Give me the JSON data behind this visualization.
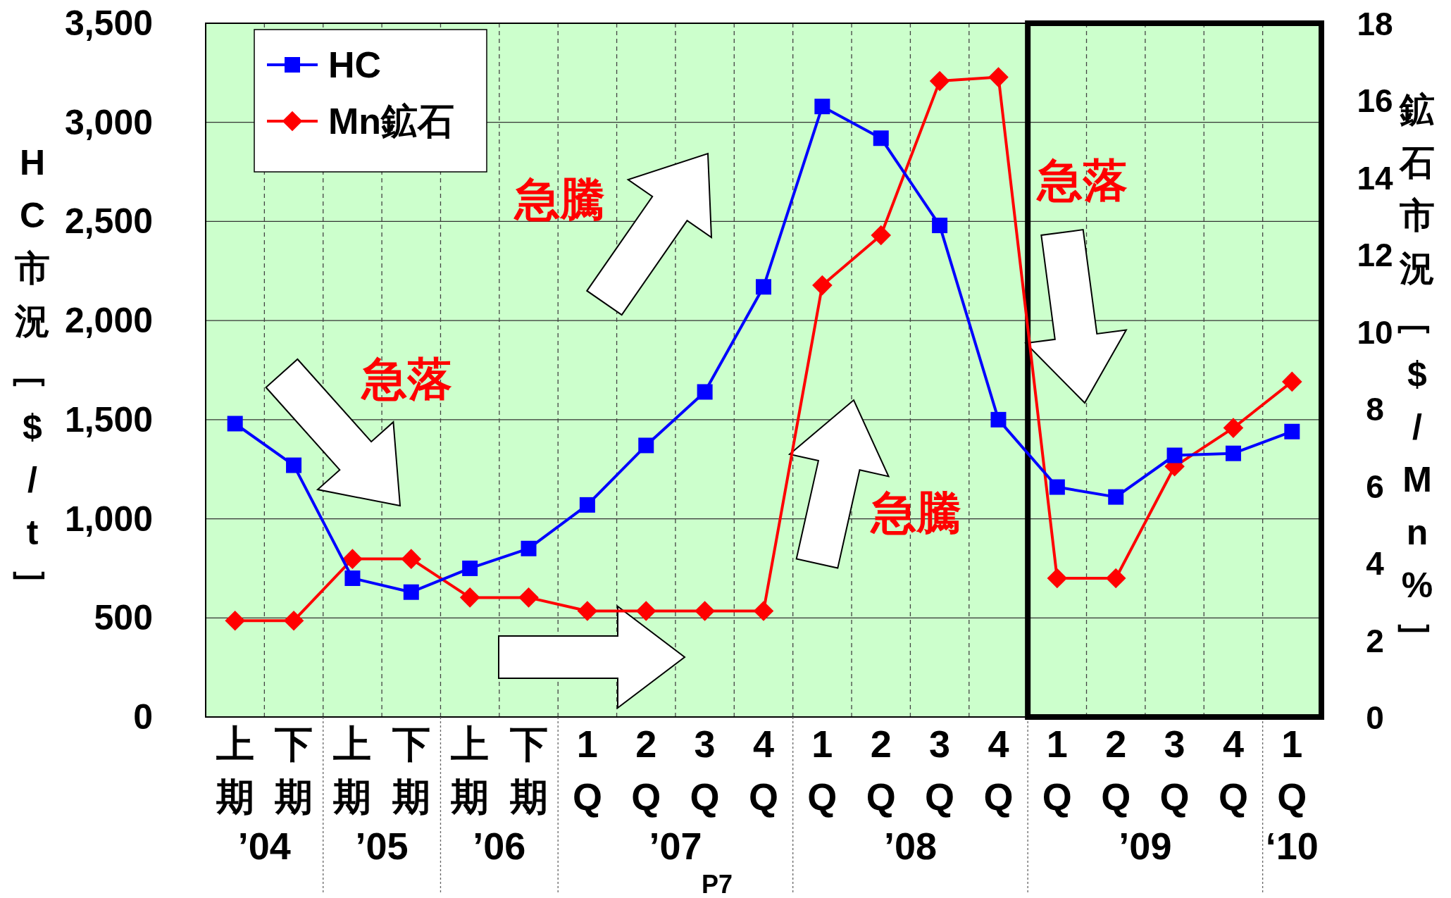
{
  "chart_data": {
    "type": "line",
    "categories": [
      "上期",
      "下期",
      "上期",
      "下期",
      "上期",
      "下期",
      "1Q",
      "2Q",
      "3Q",
      "4Q",
      "1Q",
      "2Q",
      "3Q",
      "4Q",
      "1Q",
      "2Q",
      "3Q",
      "4Q",
      "1Q"
    ],
    "series": [
      {
        "name": "HC",
        "color": "#0000ff",
        "marker": "square",
        "values": [
          1480,
          1270,
          700,
          630,
          750,
          850,
          1070,
          1370,
          1640,
          2170,
          3080,
          2920,
          2480,
          1500,
          1160,
          1110,
          1320,
          1330,
          1440
        ]
      },
      {
        "name": "Mn鉱石",
        "color": "#ff0000",
        "marker": "diamond",
        "axis": "y2",
        "values": [
          2.5,
          2.5,
          4.1,
          4.1,
          3.1,
          3.1,
          2.75,
          2.75,
          2.75,
          2.75,
          11.2,
          12.5,
          16.5,
          16.6,
          3.6,
          3.6,
          6.5,
          7.5,
          8.7
        ]
      }
    ],
    "ylabel": "HC市況［$/t］",
    "y2label": "鉱石市況［$/Mn%］",
    "ylim": [
      0,
      3500
    ],
    "yticks": [
      0,
      500,
      {
        "value": 1000,
        "label": "1,000"
      },
      {
        "value": 1500,
        "label": "1,500"
      },
      {
        "value": 2000,
        "label": "2,000"
      },
      {
        "value": 2500,
        "label": "2,500"
      },
      {
        "value": 3000,
        "label": "3,000"
      },
      {
        "value": 3500,
        "label": "3,500"
      }
    ],
    "y2lim": [
      0,
      18
    ],
    "y2ticks": [
      0,
      2,
      4,
      6,
      8,
      10,
      12,
      14,
      16,
      18
    ],
    "grid": true,
    "legend": "top left",
    "annotations": [
      "’04",
      "’05",
      "’06",
      "’07",
      "’08",
      "’09",
      "‘10",
      "急落",
      "急騰",
      "急騰",
      "急落",
      "P7"
    ]
  }
}
